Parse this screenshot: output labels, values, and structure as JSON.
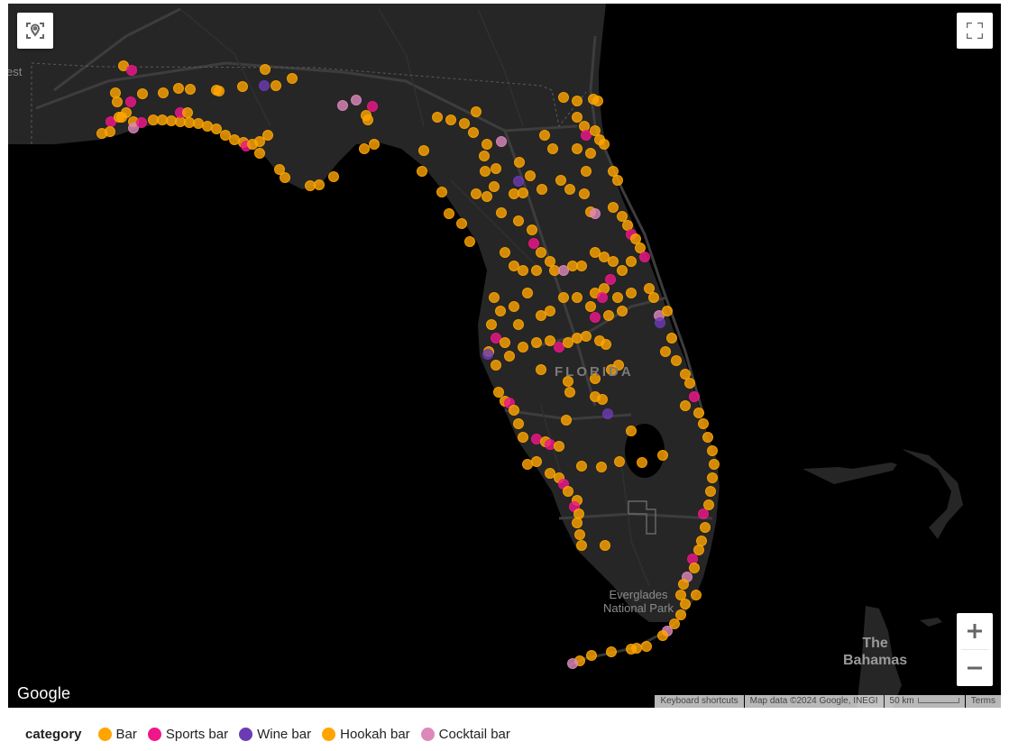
{
  "map": {
    "labels": {
      "state": "FLORIDA",
      "park": [
        "Everglades",
        "National Park"
      ],
      "country": [
        "The",
        "Bahamas"
      ],
      "edge_partial": "est"
    },
    "controls": {
      "locate": "Locate / reset view",
      "fullscreen": "Toggle fullscreen",
      "zoom_in": "+",
      "zoom_out": "−"
    },
    "logo": "Google",
    "attribution": {
      "shortcuts": "Keyboard shortcuts",
      "map_data": "Map data ©2024 Google, INEGI",
      "scale": "50 km",
      "terms": "Terms"
    },
    "colors": {
      "water": "#000000",
      "land": "#262626",
      "road": "#3d3d3d",
      "Bar": "#FFA500",
      "Sports bar": "#F0168A",
      "Wine bar": "#6B3BB5",
      "Hookah bar": "#FFA500",
      "Cocktail bar": "#DD88BB"
    },
    "points": [
      [
        "Bar",
        137,
        73
      ],
      [
        "Sports bar",
        146,
        78
      ],
      [
        "Bar",
        128,
        103
      ],
      [
        "Bar",
        130,
        113
      ],
      [
        "Sports bar",
        145,
        113
      ],
      [
        "Bar",
        158,
        104
      ],
      [
        "Bar",
        181,
        103
      ],
      [
        "Bar",
        198,
        98
      ],
      [
        "Bar",
        211,
        99
      ],
      [
        "Bar",
        240,
        100
      ],
      [
        "Wine bar",
        293,
        95
      ],
      [
        "Bar",
        306,
        95
      ],
      [
        "Bar",
        324,
        87
      ],
      [
        "Bar",
        294,
        77
      ],
      [
        "Bar",
        269,
        96
      ],
      [
        "Bar",
        243,
        101
      ],
      [
        "Sports bar",
        123,
        135
      ],
      [
        "Bar",
        135,
        130
      ],
      [
        "Bar",
        148,
        135
      ],
      [
        "Cocktail bar",
        148,
        142
      ],
      [
        "Sports bar",
        157,
        136
      ],
      [
        "Bar",
        113,
        148
      ],
      [
        "Bar",
        122,
        146
      ],
      [
        "Bar",
        132,
        130
      ],
      [
        "Bar",
        140,
        125
      ],
      [
        "Bar",
        170,
        133
      ],
      [
        "Bar",
        180,
        133
      ],
      [
        "Bar",
        190,
        134
      ],
      [
        "Bar",
        200,
        135
      ],
      [
        "Bar",
        210,
        136
      ],
      [
        "Bar",
        220,
        137
      ],
      [
        "Sports bar",
        200,
        125
      ],
      [
        "Bar",
        208,
        125
      ],
      [
        "Bar",
        230,
        140
      ],
      [
        "Bar",
        240,
        143
      ],
      [
        "Bar",
        250,
        150
      ],
      [
        "Bar",
        260,
        155
      ],
      [
        "Bar",
        270,
        158
      ],
      [
        "Sports bar",
        273,
        162
      ],
      [
        "Bar",
        280,
        160
      ],
      [
        "Bar",
        288,
        157
      ],
      [
        "Bar",
        297,
        150
      ],
      [
        "Bar",
        288,
        170
      ],
      [
        "Bar",
        310,
        188
      ],
      [
        "Bar",
        316,
        197
      ],
      [
        "Bar",
        344,
        206
      ],
      [
        "Bar",
        354,
        205
      ],
      [
        "Bar",
        370,
        196
      ],
      [
        "Cocktail bar",
        380,
        117
      ],
      [
        "Cocktail bar",
        395,
        111
      ],
      [
        "Sports bar",
        413,
        118
      ],
      [
        "Bar",
        406,
        128
      ],
      [
        "Bar",
        408,
        133
      ],
      [
        "Bar",
        404,
        165
      ],
      [
        "Bar",
        415,
        160
      ],
      [
        "Bar",
        470,
        167
      ],
      [
        "Bar",
        468,
        190
      ],
      [
        "Bar",
        485,
        130
      ],
      [
        "Bar",
        500,
        133
      ],
      [
        "Bar",
        515,
        137
      ],
      [
        "Bar",
        528,
        124
      ],
      [
        "Bar",
        525,
        147
      ],
      [
        "Bar",
        540,
        160
      ],
      [
        "Cocktail bar",
        556,
        157
      ],
      [
        "Bar",
        537,
        173
      ],
      [
        "Bar",
        550,
        187
      ],
      [
        "Bar",
        538,
        190
      ],
      [
        "Bar",
        548,
        207
      ],
      [
        "Bar",
        528,
        215
      ],
      [
        "Bar",
        540,
        218
      ],
      [
        "Bar",
        490,
        213
      ],
      [
        "Bar",
        498,
        237
      ],
      [
        "Bar",
        512,
        248
      ],
      [
        "Bar",
        521,
        268
      ],
      [
        "Bar",
        556,
        236
      ],
      [
        "Bar",
        560,
        280
      ],
      [
        "Bar",
        576,
        180
      ],
      [
        "Bar",
        588,
        195
      ],
      [
        "Wine bar",
        575,
        201
      ],
      [
        "Bar",
        570,
        215
      ],
      [
        "Bar",
        580,
        214
      ],
      [
        "Bar",
        604,
        150
      ],
      [
        "Bar",
        613,
        165
      ],
      [
        "Bar",
        601,
        210
      ],
      [
        "Bar",
        622,
        200
      ],
      [
        "Bar",
        632,
        210
      ],
      [
        "Bar",
        625,
        108
      ],
      [
        "Bar",
        640,
        112
      ],
      [
        "Bar",
        658,
        110
      ],
      [
        "Bar",
        663,
        112
      ],
      [
        "Bar",
        640,
        130
      ],
      [
        "Bar",
        648,
        140
      ],
      [
        "Sports bar",
        650,
        150
      ],
      [
        "Bar",
        660,
        145
      ],
      [
        "Bar",
        665,
        155
      ],
      [
        "Bar",
        640,
        165
      ],
      [
        "Bar",
        655,
        170
      ],
      [
        "Bar",
        670,
        160
      ],
      [
        "Bar",
        680,
        190
      ],
      [
        "Bar",
        685,
        200
      ],
      [
        "Bar",
        650,
        190
      ],
      [
        "Bar",
        648,
        215
      ],
      [
        "Bar",
        655,
        235
      ],
      [
        "Cocktail bar",
        660,
        237
      ],
      [
        "Bar",
        680,
        230
      ],
      [
        "Bar",
        690,
        240
      ],
      [
        "Bar",
        696,
        250
      ],
      [
        "Sports bar",
        700,
        260
      ],
      [
        "Bar",
        705,
        265
      ],
      [
        "Bar",
        710,
        275
      ],
      [
        "Sports bar",
        715,
        285
      ],
      [
        "Bar",
        700,
        290
      ],
      [
        "Bar",
        575,
        245
      ],
      [
        "Bar",
        590,
        255
      ],
      [
        "Sports bar",
        592,
        270
      ],
      [
        "Bar",
        600,
        280
      ],
      [
        "Bar",
        610,
        290
      ],
      [
        "Bar",
        570,
        295
      ],
      [
        "Bar",
        580,
        300
      ],
      [
        "Bar",
        595,
        300
      ],
      [
        "Bar",
        615,
        300
      ],
      [
        "Cocktail bar",
        625,
        300
      ],
      [
        "Bar",
        635,
        295
      ],
      [
        "Bar",
        645,
        295
      ],
      [
        "Bar",
        660,
        280
      ],
      [
        "Bar",
        670,
        285
      ],
      [
        "Bar",
        680,
        290
      ],
      [
        "Bar",
        690,
        300
      ],
      [
        "Sports bar",
        677,
        310
      ],
      [
        "Bar",
        670,
        320
      ],
      [
        "Bar",
        660,
        325
      ],
      [
        "Sports bar",
        668,
        330
      ],
      [
        "Bar",
        685,
        330
      ],
      [
        "Bar",
        655,
        340
      ],
      [
        "Sports bar",
        660,
        352
      ],
      [
        "Bar",
        675,
        350
      ],
      [
        "Bar",
        690,
        345
      ],
      [
        "Bar",
        700,
        325
      ],
      [
        "Bar",
        720,
        320
      ],
      [
        "Bar",
        725,
        330
      ],
      [
        "Cocktail bar",
        731,
        350
      ],
      [
        "Bar",
        740,
        345
      ],
      [
        "Wine bar",
        732,
        358
      ],
      [
        "Bar",
        745,
        375
      ],
      [
        "Bar",
        738,
        390
      ],
      [
        "Bar",
        548,
        330
      ],
      [
        "Bar",
        555,
        345
      ],
      [
        "Bar",
        545,
        360
      ],
      [
        "Sports bar",
        550,
        375
      ],
      [
        "Bar",
        560,
        380
      ],
      [
        "Bar",
        542,
        390
      ],
      [
        "Wine bar",
        541,
        393
      ],
      [
        "Bar",
        550,
        405
      ],
      [
        "Bar",
        565,
        395
      ],
      [
        "Bar",
        580,
        385
      ],
      [
        "Bar",
        595,
        380
      ],
      [
        "Bar",
        610,
        378
      ],
      [
        "Sports bar",
        620,
        385
      ],
      [
        "Bar",
        630,
        380
      ],
      [
        "Bar",
        640,
        375
      ],
      [
        "Bar",
        650,
        373
      ],
      [
        "Bar",
        665,
        378
      ],
      [
        "Bar",
        672,
        382
      ],
      [
        "Bar",
        600,
        350
      ],
      [
        "Bar",
        610,
        345
      ],
      [
        "Bar",
        625,
        330
      ],
      [
        "Bar",
        640,
        330
      ],
      [
        "Bar",
        585,
        325
      ],
      [
        "Bar",
        570,
        340
      ],
      [
        "Bar",
        575,
        360
      ],
      [
        "Bar",
        600,
        410
      ],
      [
        "Bar",
        630,
        423
      ],
      [
        "Bar",
        632,
        435
      ],
      [
        "Bar",
        660,
        420
      ],
      [
        "Bar",
        660,
        440
      ],
      [
        "Bar",
        668,
        443
      ],
      [
        "Bar",
        678,
        410
      ],
      [
        "Bar",
        686,
        405
      ],
      [
        "Wine bar",
        674,
        459
      ],
      [
        "Bar",
        553,
        435
      ],
      [
        "Bar",
        560,
        445
      ],
      [
        "Sports bar",
        565,
        447
      ],
      [
        "Bar",
        570,
        455
      ],
      [
        "Bar",
        575,
        470
      ],
      [
        "Bar",
        580,
        485
      ],
      [
        "Sports bar",
        595,
        487
      ],
      [
        "Bar",
        605,
        490
      ],
      [
        "Sports bar",
        610,
        493
      ],
      [
        "Bar",
        620,
        495
      ],
      [
        "Bar",
        595,
        512
      ],
      [
        "Bar",
        585,
        515
      ],
      [
        "Bar",
        628,
        466
      ],
      [
        "Bar",
        700,
        478
      ],
      [
        "Bar",
        712,
        513
      ],
      [
        "Bar",
        735,
        505
      ],
      [
        "Bar",
        645,
        517
      ],
      [
        "Bar",
        667,
        518
      ],
      [
        "Bar",
        687,
        512
      ],
      [
        "Bar",
        610,
        525
      ],
      [
        "Bar",
        620,
        530
      ],
      [
        "Sports bar",
        625,
        537
      ],
      [
        "Bar",
        630,
        545
      ],
      [
        "Bar",
        640,
        555
      ],
      [
        "Sports bar",
        637,
        562
      ],
      [
        "Bar",
        642,
        570
      ],
      [
        "Bar",
        640,
        580
      ],
      [
        "Bar",
        643,
        593
      ],
      [
        "Bar",
        645,
        605
      ],
      [
        "Bar",
        671,
        605
      ],
      [
        "Bar",
        750,
        400
      ],
      [
        "Bar",
        760,
        415
      ],
      [
        "Bar",
        765,
        425
      ],
      [
        "Sports bar",
        770,
        440
      ],
      [
        "Bar",
        760,
        450
      ],
      [
        "Bar",
        775,
        458
      ],
      [
        "Bar",
        780,
        470
      ],
      [
        "Bar",
        785,
        485
      ],
      [
        "Bar",
        790,
        500
      ],
      [
        "Bar",
        792,
        515
      ],
      [
        "Bar",
        790,
        530
      ],
      [
        "Bar",
        788,
        545
      ],
      [
        "Bar",
        786,
        560
      ],
      [
        "Sports bar",
        780,
        570
      ],
      [
        "Bar",
        782,
        585
      ],
      [
        "Bar",
        778,
        600
      ],
      [
        "Bar",
        775,
        610
      ],
      [
        "Sports bar",
        768,
        620
      ],
      [
        "Bar",
        770,
        630
      ],
      [
        "Cocktail bar",
        762,
        640
      ],
      [
        "Bar",
        758,
        648
      ],
      [
        "Bar",
        755,
        660
      ],
      [
        "Bar",
        772,
        660
      ],
      [
        "Bar",
        760,
        670
      ],
      [
        "Bar",
        755,
        682
      ],
      [
        "Bar",
        748,
        692
      ],
      [
        "Cocktail bar",
        740,
        700
      ],
      [
        "Bar",
        735,
        705
      ],
      [
        "Bar",
        717,
        717
      ],
      [
        "Bar",
        706,
        719
      ],
      [
        "Bar",
        700,
        720
      ],
      [
        "Bar",
        678,
        723
      ],
      [
        "Bar",
        656,
        727
      ],
      [
        "Bar",
        643,
        733
      ],
      [
        "Cocktail bar",
        635,
        736
      ]
    ]
  },
  "legend": {
    "title": "category",
    "items": [
      {
        "label": "Bar",
        "color": "#FFA500"
      },
      {
        "label": "Sports bar",
        "color": "#F0168A"
      },
      {
        "label": "Wine bar",
        "color": "#6B3BB5"
      },
      {
        "label": "Hookah bar",
        "color": "#FFA500"
      },
      {
        "label": "Cocktail bar",
        "color": "#DD88BB"
      }
    ]
  }
}
